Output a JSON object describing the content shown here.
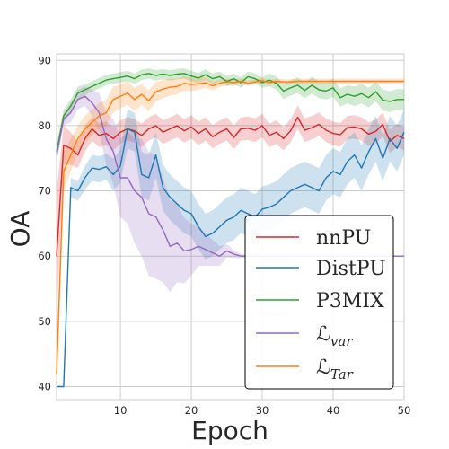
{
  "chart_data": {
    "type": "line",
    "xlabel": "Epoch",
    "ylabel": "OA",
    "xlim": [
      1,
      50
    ],
    "ylim": [
      38,
      91
    ],
    "xticks": [
      10,
      20,
      30,
      40,
      50
    ],
    "yticks": [
      40,
      50,
      60,
      70,
      80,
      90
    ],
    "grid": true,
    "legend_position": "lower-right",
    "series": [
      {
        "name": "nnPU",
        "color": "#d62728",
        "x": [
          1,
          2,
          3,
          4,
          5,
          6,
          7,
          8,
          9,
          10,
          11,
          12,
          13,
          14,
          15,
          16,
          17,
          18,
          19,
          20,
          21,
          22,
          23,
          24,
          25,
          26,
          27,
          28,
          29,
          30,
          31,
          32,
          33,
          34,
          35,
          36,
          37,
          38,
          39,
          40,
          41,
          42,
          43,
          44,
          45,
          46,
          47,
          48,
          49,
          50
        ],
        "y": [
          60,
          77,
          76.5,
          75.5,
          78,
          79.5,
          78.5,
          78.8,
          78,
          79,
          79.5,
          79.2,
          78.5,
          79.5,
          80,
          79,
          79.5,
          80,
          79.2,
          79.8,
          78.8,
          79.5,
          78.3,
          79,
          79.5,
          78.2,
          79.5,
          79.6,
          79.3,
          80,
          78.5,
          79,
          78,
          79.2,
          81.3,
          79.3,
          79.7,
          80.2,
          79.3,
          78.8,
          78.6,
          79.7,
          79.8,
          79.5,
          78.7,
          79.1,
          80.2,
          77.6,
          78.5,
          78
        ],
        "band": [
          10,
          3,
          2.5,
          2,
          2,
          1.8,
          1.8,
          1.8,
          1.8,
          1.8,
          1.8,
          1.8,
          1.8,
          1.8,
          1.8,
          1.8,
          1.8,
          1.8,
          1.8,
          1.8,
          1.8,
          1.8,
          1.8,
          1.8,
          1.8,
          1.8,
          1.8,
          1.8,
          1.8,
          1.8,
          1.8,
          1.8,
          1.8,
          1.8,
          1.8,
          1.8,
          1.8,
          1.8,
          1.8,
          1.8,
          1.8,
          1.8,
          1.8,
          1.8,
          1.8,
          1.8,
          1.8,
          1.8,
          1.8,
          1.8
        ]
      },
      {
        "name": "DistPU",
        "color": "#1f77b4",
        "x": [
          1,
          2,
          3,
          4,
          5,
          6,
          7,
          8,
          9,
          10,
          11,
          12,
          13,
          14,
          15,
          16,
          17,
          18,
          19,
          20,
          21,
          22,
          23,
          24,
          25,
          26,
          27,
          28,
          29,
          30,
          31,
          32,
          33,
          34,
          35,
          36,
          37,
          38,
          39,
          40,
          41,
          42,
          43,
          44,
          45,
          46,
          47,
          48,
          49,
          50
        ],
        "y": [
          40,
          40,
          70.5,
          70,
          72,
          73.5,
          73.3,
          73.7,
          72.5,
          73.8,
          79.5,
          79,
          72.5,
          72,
          75.5,
          70.5,
          69,
          68,
          67,
          66.5,
          64.5,
          63,
          63.5,
          64.5,
          65.5,
          66,
          67,
          66.5,
          66,
          67.2,
          67.5,
          68,
          69,
          70,
          70.5,
          71,
          70.5,
          70,
          72,
          73,
          72.5,
          74.5,
          75.5,
          73.5,
          76,
          78,
          75,
          78,
          76.5,
          79
        ],
        "band": [
          0,
          0,
          1.5,
          1.5,
          1.8,
          2,
          2,
          2,
          2.5,
          2.5,
          3,
          3,
          3.5,
          3.5,
          3.5,
          3.5,
          3.5,
          3.5,
          3.5,
          3.5,
          3.5,
          3.5,
          3.5,
          3.5,
          3.5,
          3.5,
          3.5,
          3.5,
          3.5,
          3.5,
          3.5,
          3.5,
          3.5,
          3.5,
          3.5,
          3.5,
          3.5,
          3.5,
          3.5,
          3.5,
          3.5,
          3.5,
          3.5,
          3.5,
          3.5,
          3.5,
          3.5,
          3.5,
          3.5,
          3.5
        ]
      },
      {
        "name": "P3MIX",
        "color": "#2ca02c",
        "x": [
          1,
          2,
          3,
          4,
          5,
          6,
          7,
          8,
          9,
          10,
          11,
          12,
          13,
          14,
          15,
          16,
          17,
          18,
          19,
          20,
          21,
          22,
          23,
          24,
          25,
          26,
          27,
          28,
          29,
          30,
          31,
          32,
          33,
          34,
          35,
          36,
          37,
          38,
          39,
          40,
          41,
          42,
          43,
          44,
          45,
          46,
          47,
          48,
          49,
          50
        ],
        "y": [
          76,
          81.5,
          83,
          85,
          85.5,
          86,
          86.5,
          87,
          87.2,
          87.4,
          87.6,
          87.2,
          87.8,
          88,
          87.7,
          87.9,
          87.7,
          87.9,
          88,
          87.6,
          87.3,
          87.8,
          87.2,
          87.5,
          86.8,
          87.2,
          86.6,
          87.5,
          87.2,
          86.6,
          87,
          86.5,
          85.3,
          85.8,
          86.2,
          85.4,
          86.2,
          85.5,
          85.3,
          85.8,
          84.3,
          84.8,
          84.5,
          84.9,
          84.3,
          85.2,
          83.9,
          83.7,
          84,
          84
        ],
        "band": [
          1.5,
          1,
          1,
          1,
          0.8,
          0.8,
          0.8,
          0.8,
          0.8,
          0.8,
          0.8,
          0.8,
          0.8,
          0.8,
          0.8,
          0.8,
          0.8,
          0.8,
          0.8,
          0.8,
          0.8,
          0.8,
          0.8,
          0.8,
          0.8,
          0.8,
          0.8,
          0.8,
          0.8,
          0.8,
          1,
          1,
          1.2,
          1.2,
          1.2,
          1.2,
          1.3,
          1.3,
          1.3,
          1.4,
          1.4,
          1.4,
          1.5,
          1.5,
          1.5,
          1.5,
          1.6,
          1.6,
          1.6,
          1.6
        ]
      },
      {
        "name": "L_var",
        "color": "#9467bd",
        "x": [
          1,
          2,
          3,
          4,
          5,
          6,
          7,
          8,
          9,
          10,
          11,
          12,
          13,
          14,
          15,
          16,
          17,
          18,
          19,
          20,
          21,
          22,
          23,
          24,
          25,
          26,
          27,
          28,
          29,
          30,
          31,
          32,
          33,
          34,
          35,
          36,
          37,
          38,
          39,
          40,
          41,
          42,
          43,
          44,
          45,
          46,
          47,
          48,
          49,
          50
        ],
        "y": [
          75.5,
          81,
          82,
          84,
          84.5,
          83.5,
          82,
          78,
          76,
          72,
          72,
          70,
          69,
          66.5,
          66,
          64,
          61.5,
          62,
          60.8,
          61,
          61.5,
          61,
          60.5,
          60,
          60.8,
          60.3,
          60,
          60,
          60,
          60,
          60,
          60,
          60,
          60,
          60,
          60,
          60,
          60,
          60,
          60,
          60,
          60,
          60,
          60,
          60,
          60,
          60,
          60,
          60,
          60
        ],
        "band": [
          1,
          1,
          1.5,
          1.5,
          1.5,
          2,
          3,
          4,
          5,
          6,
          7,
          8,
          9,
          9.5,
          9.5,
          8,
          7,
          6,
          5,
          4,
          3,
          2.5,
          2,
          1.5,
          1,
          0.6,
          0.3,
          0.2,
          0.1,
          0,
          0,
          0,
          0,
          0,
          0,
          0,
          0,
          0,
          0,
          0,
          0,
          0,
          0,
          0,
          0,
          0,
          0,
          0,
          0,
          0
        ]
      },
      {
        "name": "L_Tar",
        "color": "#ff7f0e",
        "x": [
          1,
          2,
          3,
          4,
          5,
          6,
          7,
          8,
          9,
          10,
          11,
          12,
          13,
          14,
          15,
          16,
          17,
          18,
          19,
          20,
          21,
          22,
          23,
          24,
          25,
          26,
          27,
          28,
          29,
          30,
          31,
          32,
          33,
          34,
          35,
          36,
          37,
          38,
          39,
          40,
          41,
          42,
          43,
          44,
          45,
          46,
          47,
          48,
          49,
          50
        ],
        "y": [
          42,
          73,
          75.5,
          78,
          79.5,
          80.5,
          81.5,
          82,
          84,
          84.5,
          85,
          84,
          84.8,
          83.8,
          85.2,
          85.6,
          85.9,
          86,
          86.5,
          86.3,
          86.4,
          86.6,
          86.1,
          86.5,
          86.7,
          86.6,
          86.8,
          86.5,
          86.7,
          86.9,
          86.6,
          86.8,
          86.7,
          86.7,
          86.8,
          86.8,
          86.8,
          86.8,
          86.8,
          86.8,
          86.8,
          86.8,
          86.8,
          86.8,
          86.8,
          86.8,
          86.8,
          86.8,
          86.8,
          86.8
        ],
        "band": [
          4,
          3,
          2.5,
          2,
          2,
          2,
          2,
          2,
          2,
          1.8,
          1.8,
          1.8,
          1.6,
          1.6,
          1.5,
          1.4,
          1.3,
          1.2,
          1.1,
          1,
          0.9,
          0.8,
          0.7,
          0.6,
          0.5,
          0.5,
          0.4,
          0.4,
          0.4,
          0.4,
          0.4,
          0.4,
          0.4,
          0.4,
          0.4,
          0.4,
          0.4,
          0.4,
          0.4,
          0.4,
          0.4,
          0.4,
          0.4,
          0.4,
          0.4,
          0.4,
          0.4,
          0.4,
          0.4,
          0.4
        ]
      }
    ]
  },
  "legend": {
    "items": [
      {
        "label": "nnPU",
        "sub": "",
        "color": "#d62728"
      },
      {
        "label": "DistPU",
        "sub": "",
        "color": "#1f77b4"
      },
      {
        "label": "P3MIX",
        "sub": "",
        "color": "#2ca02c"
      },
      {
        "label": "ℒ",
        "sub": "var",
        "color": "#9467bd"
      },
      {
        "label": "ℒ",
        "sub": "Tar",
        "color": "#ff7f0e"
      }
    ]
  }
}
